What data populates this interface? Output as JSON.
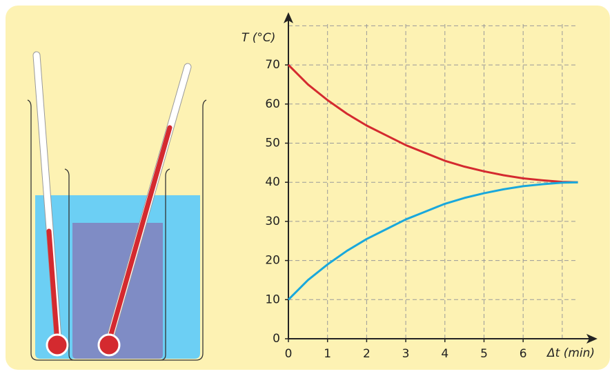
{
  "chart_data": {
    "type": "line",
    "y_label": "T (°C)",
    "x_label": "Δt (min)",
    "x": [
      0,
      0.5,
      1,
      1.5,
      2,
      2.5,
      3,
      3.5,
      4,
      4.5,
      5,
      5.5,
      6,
      6.5,
      7,
      7.4
    ],
    "series": [
      {
        "color": "#d42a2f",
        "values": [
          70,
          65,
          61,
          57.5,
          54.5,
          52,
          49.5,
          47.5,
          45.5,
          44,
          42.8,
          41.8,
          41,
          40.5,
          40.1,
          40
        ]
      },
      {
        "color": "#19a8dc",
        "values": [
          10,
          15,
          19,
          22.5,
          25.5,
          28,
          30.5,
          32.5,
          34.5,
          36,
          37.2,
          38.2,
          39,
          39.5,
          39.9,
          40
        ]
      }
    ],
    "xlim": [
      0,
      7.9
    ],
    "ylim": [
      0,
      81
    ],
    "xticks": [
      0,
      1,
      2,
      3,
      4,
      5,
      6
    ],
    "yticks": [
      0,
      10,
      20,
      30,
      40,
      50,
      60,
      70
    ],
    "xgrid": [
      1,
      2,
      3,
      4,
      5,
      6,
      7
    ],
    "ygrid": [
      10,
      20,
      30,
      40,
      50,
      60,
      70,
      80
    ],
    "grid": true
  }
}
